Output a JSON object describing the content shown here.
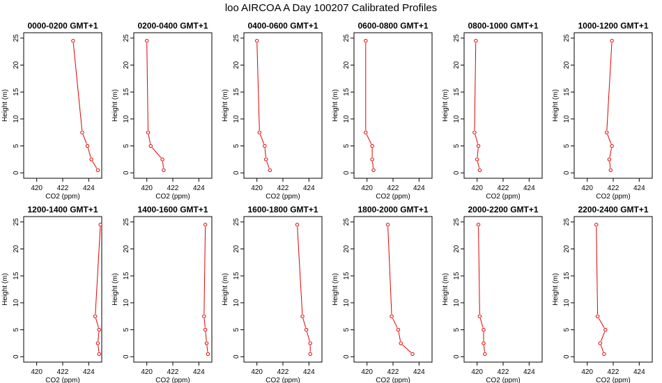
{
  "figure": {
    "title": "loo AIRCOA A  Day 100207  Calibrated Profiles"
  },
  "style": {
    "series_color": "#dd0000",
    "axis_color": "#000000",
    "background": "#ffffff"
  },
  "chart_data": [
    {
      "type": "line",
      "title": "0000-0200 GMT+1",
      "xlabel": "CO2 (ppm)",
      "ylabel": "Height (m)",
      "xlim": [
        419,
        425
      ],
      "ylim": [
        0,
        25
      ],
      "xticks": [
        420,
        422,
        424
      ],
      "yticks": [
        0,
        5,
        10,
        15,
        20,
        25
      ],
      "x": [
        424.7,
        424.2,
        423.9,
        423.5,
        422.8
      ],
      "y": [
        0.5,
        2.5,
        5,
        7.5,
        24.5
      ]
    },
    {
      "type": "line",
      "title": "0200-0400 GMT+1",
      "xlabel": "CO2 (ppm)",
      "ylabel": "Height (m)",
      "xlim": [
        419,
        425
      ],
      "ylim": [
        0,
        25
      ],
      "xticks": [
        420,
        422,
        424
      ],
      "yticks": [
        0,
        5,
        10,
        15,
        20,
        25
      ],
      "x": [
        421.3,
        421.2,
        420.3,
        420.1,
        420.0
      ],
      "y": [
        0.5,
        2.5,
        5,
        7.5,
        24.5
      ]
    },
    {
      "type": "line",
      "title": "0400-0600 GMT+1",
      "xlabel": "CO2 (ppm)",
      "ylabel": "Height (m)",
      "xlim": [
        419,
        425
      ],
      "ylim": [
        0,
        25
      ],
      "xticks": [
        420,
        422,
        424
      ],
      "yticks": [
        0,
        5,
        10,
        15,
        20,
        25
      ],
      "x": [
        421.0,
        420.7,
        420.6,
        420.2,
        420.0
      ],
      "y": [
        0.5,
        2.5,
        5,
        7.5,
        24.5
      ]
    },
    {
      "type": "line",
      "title": "0600-0800 GMT+1",
      "xlabel": "CO2 (ppm)",
      "ylabel": "Height (m)",
      "xlim": [
        419,
        425
      ],
      "ylim": [
        0,
        25
      ],
      "xticks": [
        420,
        422,
        424
      ],
      "yticks": [
        0,
        5,
        10,
        15,
        20,
        25
      ],
      "x": [
        420.5,
        420.4,
        420.4,
        419.9,
        419.9
      ],
      "y": [
        0.5,
        2.5,
        5,
        7.5,
        24.5
      ]
    },
    {
      "type": "line",
      "title": "0800-1000 GMT+1",
      "xlabel": "CO2 (ppm)",
      "ylabel": "Height (m)",
      "xlim": [
        419,
        425
      ],
      "ylim": [
        0,
        25
      ],
      "xticks": [
        420,
        422,
        424
      ],
      "yticks": [
        0,
        5,
        10,
        15,
        20,
        25
      ],
      "x": [
        420.2,
        420.0,
        420.1,
        419.8,
        419.9
      ],
      "y": [
        0.5,
        2.5,
        5,
        7.5,
        24.5
      ]
    },
    {
      "type": "line",
      "title": "1000-1200 GMT+1",
      "xlabel": "CO2 (ppm)",
      "ylabel": "Height (m)",
      "xlim": [
        419,
        425
      ],
      "ylim": [
        0,
        25
      ],
      "xticks": [
        420,
        422,
        424
      ],
      "yticks": [
        0,
        5,
        10,
        15,
        20,
        25
      ],
      "x": [
        421.8,
        421.7,
        421.9,
        421.5,
        421.9
      ],
      "y": [
        0.5,
        2.5,
        5,
        7.5,
        24.5
      ]
    },
    {
      "type": "line",
      "title": "1200-1400 GMT+1",
      "xlabel": "CO2 (ppm)",
      "ylabel": "Height (m)",
      "xlim": [
        419,
        425
      ],
      "ylim": [
        0,
        25
      ],
      "xticks": [
        420,
        422,
        424
      ],
      "yticks": [
        0,
        5,
        10,
        15,
        20,
        25
      ],
      "x": [
        424.8,
        424.7,
        424.8,
        424.5,
        424.9
      ],
      "y": [
        0.5,
        2.5,
        5,
        7.5,
        24.5
      ]
    },
    {
      "type": "line",
      "title": "1400-1600 GMT+1",
      "xlabel": "CO2 (ppm)",
      "ylabel": "Height (m)",
      "xlim": [
        419,
        425
      ],
      "ylim": [
        0,
        25
      ],
      "xticks": [
        420,
        422,
        424
      ],
      "yticks": [
        0,
        5,
        10,
        15,
        20,
        25
      ],
      "x": [
        424.7,
        424.6,
        424.5,
        424.4,
        424.5
      ],
      "y": [
        0.5,
        2.5,
        5,
        7.5,
        24.5
      ]
    },
    {
      "type": "line",
      "title": "1600-1800 GMT+1",
      "xlabel": "CO2 (ppm)",
      "ylabel": "Height (m)",
      "xlim": [
        419,
        425
      ],
      "ylim": [
        0,
        25
      ],
      "xticks": [
        420,
        422,
        424
      ],
      "yticks": [
        0,
        5,
        10,
        15,
        20,
        25
      ],
      "x": [
        424.1,
        424.1,
        423.8,
        423.5,
        423.1
      ],
      "y": [
        0.5,
        2.5,
        5,
        7.5,
        24.5
      ]
    },
    {
      "type": "line",
      "title": "1800-2000 GMT+1",
      "xlabel": "CO2 (ppm)",
      "ylabel": "Height (m)",
      "xlim": [
        419,
        425
      ],
      "ylim": [
        0,
        25
      ],
      "xticks": [
        420,
        422,
        424
      ],
      "yticks": [
        0,
        5,
        10,
        15,
        20,
        25
      ],
      "x": [
        423.5,
        422.6,
        422.4,
        421.9,
        421.6
      ],
      "y": [
        0.5,
        2.5,
        5,
        7.5,
        24.5
      ]
    },
    {
      "type": "line",
      "title": "2000-2200 GMT+1",
      "xlabel": "CO2 (ppm)",
      "ylabel": "Height (m)",
      "xlim": [
        419,
        425
      ],
      "ylim": [
        0,
        25
      ],
      "xticks": [
        420,
        422,
        424
      ],
      "yticks": [
        0,
        5,
        10,
        15,
        20,
        25
      ],
      "x": [
        420.6,
        420.5,
        420.5,
        420.2,
        420.1
      ],
      "y": [
        0.5,
        2.5,
        5,
        7.5,
        24.5
      ]
    },
    {
      "type": "line",
      "title": "2200-2400 GMT+1",
      "xlabel": "CO2 (ppm)",
      "ylabel": "Height (m)",
      "xlim": [
        419,
        425
      ],
      "ylim": [
        0,
        25
      ],
      "xticks": [
        420,
        422,
        424
      ],
      "yticks": [
        0,
        5,
        10,
        15,
        20,
        25
      ],
      "x": [
        421.3,
        421.0,
        421.4,
        420.8,
        420.7
      ],
      "y": [
        0.5,
        2.5,
        5,
        7.5,
        24.5
      ]
    }
  ]
}
